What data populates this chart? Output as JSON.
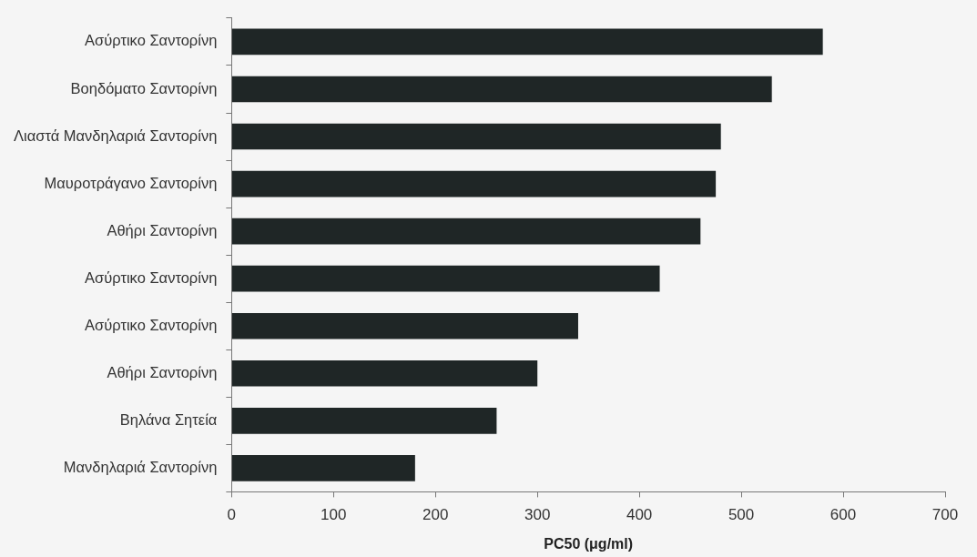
{
  "chart_data": {
    "type": "bar",
    "orientation": "horizontal",
    "xlabel": "PC50 (μg/ml)",
    "categories": [
      "Ασύρτικο Σαντορίνη",
      "Βοηδόματο Σαντορίνη",
      "Λιαστά Μανδηλαριά Σαντορίνη",
      "Μαυροτράγανο Σαντορίνη",
      "Αθήρι Σαντορίνη",
      "Ασύρτικο Σαντορίνη",
      "Ασύρτικο Σαντορίνη",
      "Αθήρι Σαντορίνη",
      "Βηλάνα Σητεία",
      "Μανδηλαριά Σαντορίνη"
    ],
    "values": [
      580,
      530,
      480,
      475,
      460,
      420,
      340,
      300,
      260,
      180
    ],
    "color": "#1f2626",
    "xlim": [
      0,
      700
    ],
    "xticks": [
      0,
      100,
      200,
      300,
      400,
      500,
      600,
      700
    ],
    "grid": false,
    "legend": false
  }
}
